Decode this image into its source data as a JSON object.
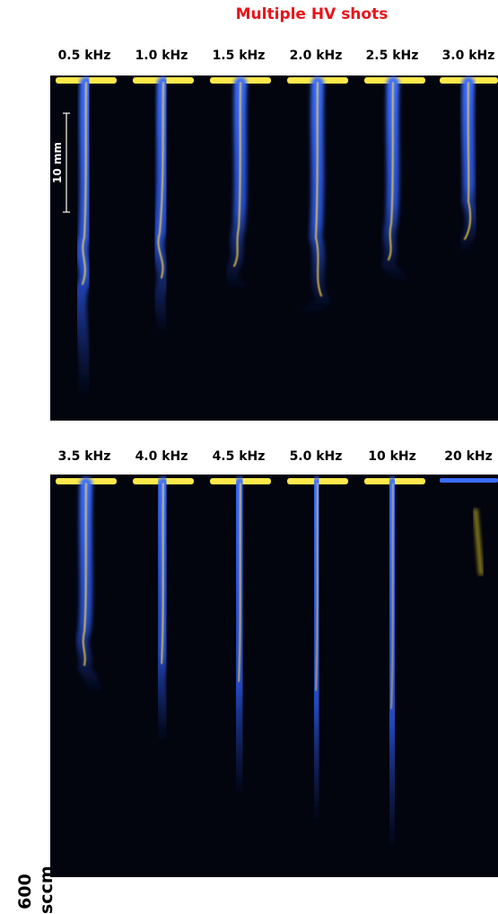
{
  "title": "Multiple HV shots",
  "flow_label": "600 sccm",
  "scale_bar_label": "10 mm",
  "rows": [
    {
      "frequencies": [
        "0.5 kHz",
        "1.0 kHz",
        "1.5 kHz",
        "2.0 kHz",
        "2.5 kHz",
        "3.0 kHz"
      ]
    },
    {
      "frequencies": [
        "3.5 kHz",
        "4.0 kHz",
        "4.5 kHz",
        "5.0 kHz",
        "10 kHz",
        "20 kHz"
      ]
    }
  ],
  "colors": {
    "title": "#e8141b",
    "background": "#02040e",
    "plasma_core": "#ffe94a",
    "plasma_body": "#2f63ff"
  }
}
